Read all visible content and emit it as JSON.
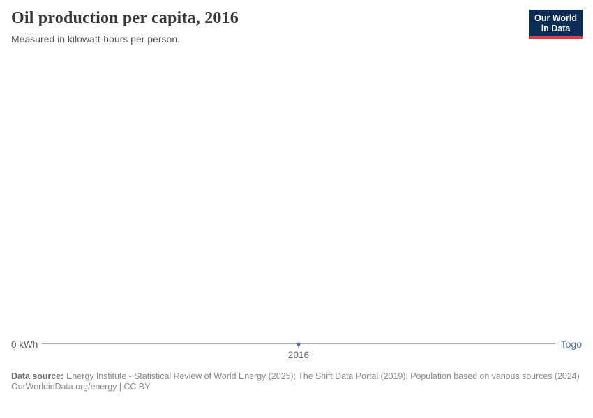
{
  "header": {
    "title": "Oil production per capita, 2016",
    "subtitle": "Measured in kilowatt-hours per person."
  },
  "logo": {
    "line1": "Our World",
    "line2": "in Data",
    "bg_color": "#0c2d56",
    "accent_color": "#dc3e3e"
  },
  "chart": {
    "axis_zero_label": "0 kWh",
    "tick_label": "2016",
    "entity_label": "Togo",
    "entity_color": "#4d73b4",
    "gridline_color": "#a8a8a8"
  },
  "chart_data": {
    "type": "line",
    "title": "Oil production per capita, 2016",
    "subtitle": "Measured in kilowatt-hours per person.",
    "x": [
      2016
    ],
    "x_tick_labels": [
      "2016"
    ],
    "y_tick_labels": [
      "0 kWh"
    ],
    "unit": "kilowatt-hours per person",
    "series": [
      {
        "name": "Togo",
        "values": [
          0
        ],
        "color": "#4d73b4"
      }
    ],
    "ylim": [
      0,
      0
    ],
    "grid": false,
    "legend_position": "right-of-line"
  },
  "footer": {
    "data_source_label": "Data source:",
    "data_source_text": "Energy Institute - Statistical Review of World Energy (2025); The Shift Data Portal (2019); Population based on various sources (2024)",
    "credit": "OurWorldinData.org/energy | CC BY"
  }
}
